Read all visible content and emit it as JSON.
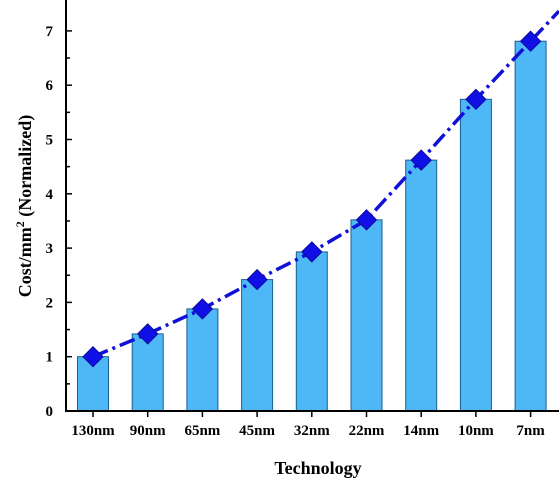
{
  "chart_data": {
    "type": "bar",
    "categories": [
      "130nm",
      "90nm",
      "65nm",
      "45nm",
      "32nm",
      "22nm",
      "14nm",
      "10nm",
      "7nm"
    ],
    "values": [
      1.0,
      1.42,
      1.88,
      2.42,
      2.93,
      3.52,
      4.62,
      5.74,
      6.81
    ],
    "line_series": {
      "values": [
        1.0,
        1.42,
        1.88,
        2.42,
        2.93,
        3.52,
        4.62,
        5.74,
        6.81
      ],
      "style": "dash-dot",
      "marker": "diamond",
      "color": "#1010e6"
    },
    "bar_color": "#4db8f5",
    "title": "",
    "xlabel": "Technology",
    "ylabel_main": "Cost/mm",
    "ylabel_sup": "2",
    "ylabel_tail": " (Normalized)",
    "ylim": [
      0,
      7.5
    ],
    "yticks": [
      "0",
      "1",
      "2",
      "3",
      "4",
      "5",
      "6",
      "7"
    ],
    "grid": false,
    "legend": "none"
  }
}
